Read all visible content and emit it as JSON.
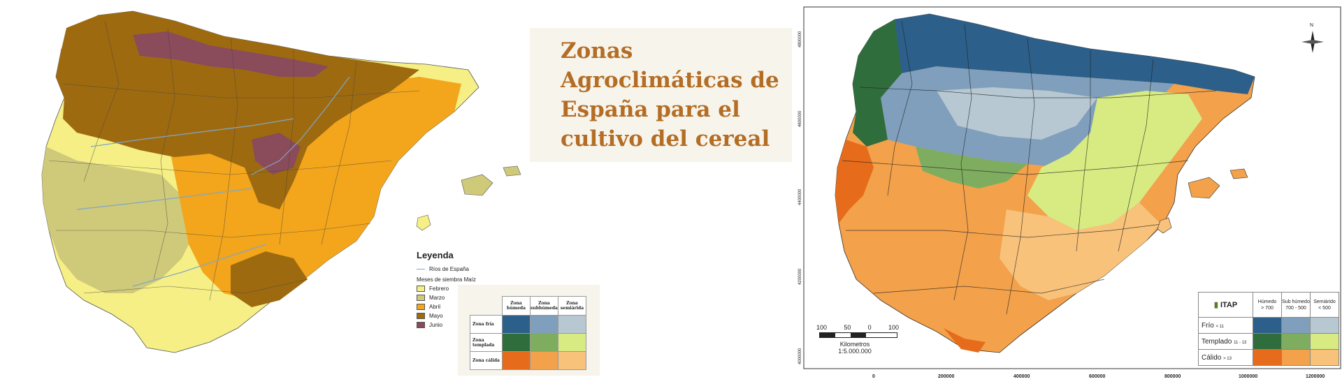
{
  "title": "Zonas Agroclimáticas de España para el cultivo del cereal",
  "colors": {
    "title": "#b46d24",
    "febrero": "#f5ef85",
    "marzo": "#cfc97a",
    "abril": "#f3a51b",
    "mayo": "#9e6a10",
    "junio": "#8a4b5a",
    "rio": "#7fa7c9",
    "humedo_frio": "#2c5f8a",
    "subhumedo_frio": "#7f9fbc",
    "semiarido_frio": "#b8c8d2",
    "humedo_templado": "#2f6e3c",
    "subhumedo_templado": "#7fad5f",
    "semiarido_templado": "#d8ea82",
    "humedo_calido": "#e66c1c",
    "subhumedo_calido": "#f3a14a",
    "semiarido_calido": "#f8c27a"
  },
  "left_legend": {
    "title": "Leyenda",
    "rio_label": "Ríos de España",
    "subtitle": "Meses de siembra Maíz",
    "months": [
      {
        "label": "Febrero",
        "color": "#f5ef85"
      },
      {
        "label": "Marzo",
        "color": "#cfc97a"
      },
      {
        "label": "Abril",
        "color": "#f3a51b"
      },
      {
        "label": "Mayo",
        "color": "#9e6a10"
      },
      {
        "label": "Junio",
        "color": "#8a4b5a"
      }
    ]
  },
  "zone_table": {
    "columns": [
      "Zona húmeda",
      "Zona subhúmeda",
      "Zona semiárida"
    ],
    "rows": [
      {
        "label": "Zona fría",
        "colors": [
          "#2c5f8a",
          "#7f9fbc",
          "#b8c8d2"
        ]
      },
      {
        "label": "Zona templada",
        "colors": [
          "#2f6e3c",
          "#7fad5f",
          "#d8ea82"
        ]
      },
      {
        "label": "Zona cálida",
        "colors": [
          "#e66c1c",
          "#f3a14a",
          "#f8c27a"
        ]
      }
    ]
  },
  "right_map": {
    "scale": {
      "ticks": [
        "100",
        "50",
        "0",
        "100"
      ],
      "unit": "Kilometros",
      "ratio": "1:5.000.000"
    },
    "legend": {
      "logo": "ITAP",
      "columns": [
        {
          "name": "Húmedo",
          "range": "> 700"
        },
        {
          "name": "Sub húmedo",
          "range": "700 - 500"
        },
        {
          "name": "Semiárido",
          "range": "< 500"
        }
      ],
      "rows": [
        {
          "label": "Frío",
          "range": "< 11",
          "colors": [
            "#2c5f8a",
            "#7f9fbc",
            "#b8c8d2"
          ]
        },
        {
          "label": "Templado",
          "range": "11 - 13",
          "colors": [
            "#2f6e3c",
            "#7fad5f",
            "#d8ea82"
          ]
        },
        {
          "label": "Cálido",
          "range": "> 13",
          "colors": [
            "#e66c1c",
            "#f3a14a",
            "#f8c27a"
          ]
        }
      ]
    },
    "x_ticks": [
      "0",
      "200000",
      "400000",
      "600000",
      "800000",
      "1000000",
      "1200000"
    ],
    "y_ticks": [
      "4800000",
      "4600000",
      "4400000",
      "4200000",
      "4000000"
    ],
    "compass": "N"
  }
}
